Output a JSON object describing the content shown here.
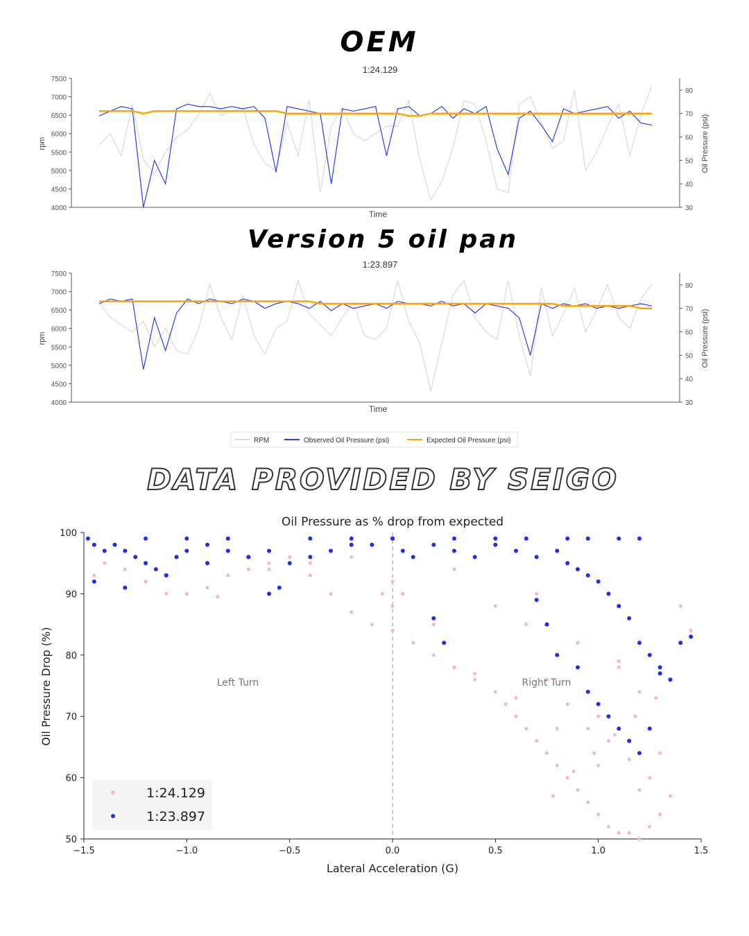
{
  "headings": {
    "top": "OEM",
    "middle": "Version 5 oil pan",
    "banner": "DATA PROVIDED BY SEIGO"
  },
  "colors": {
    "rpm": "#d9d9d9",
    "observed": "#2b3bf5",
    "expected": "#ffa500",
    "lap1_points": "#f6b8c8",
    "lap2_points": "#1a2ff0",
    "axis": "#444444"
  },
  "chart_data": [
    {
      "type": "line",
      "title": "1:24.129",
      "xlabel": "Time",
      "ylabel": "rpm",
      "y2label": "Oil Pressure (psi)",
      "ylim": [
        4000,
        7500
      ],
      "y2lim": [
        30,
        85
      ],
      "yticks": [
        4000,
        4500,
        5000,
        5500,
        6000,
        6500,
        7000,
        7500
      ],
      "y2ticks": [
        30,
        40,
        50,
        60,
        70,
        80
      ],
      "x": [
        0,
        2,
        4,
        6,
        8,
        10,
        12,
        14,
        16,
        18,
        20,
        22,
        24,
        26,
        28,
        30,
        32,
        34,
        36,
        38,
        40,
        42,
        44,
        46,
        48,
        50,
        52,
        54,
        56,
        58,
        60,
        62,
        64,
        66,
        68,
        70,
        72,
        74,
        76,
        78,
        80,
        82,
        84,
        86,
        88,
        90,
        92,
        94,
        96,
        98,
        100
      ],
      "series": [
        {
          "name": "RPM",
          "axis": "left",
          "values": [
            5700,
            6000,
            5400,
            6800,
            5300,
            4900,
            5500,
            5900,
            6100,
            6500,
            7100,
            6500,
            6600,
            6700,
            5700,
            5200,
            5000,
            6300,
            5400,
            6900,
            4400,
            6200,
            6700,
            6000,
            5800,
            6000,
            6200,
            6200,
            6900,
            5300,
            4200,
            4700,
            5600,
            6900,
            6800,
            5800,
            4500,
            4400,
            6800,
            7000,
            6300,
            5600,
            5800,
            7200,
            5000,
            5500,
            6200,
            6800,
            5400,
            6500,
            7300
          ]
        },
        {
          "name": "Observed Oil Pressure (psi)",
          "axis": "right",
          "values": [
            69,
            71,
            73,
            72,
            30,
            50,
            40,
            72,
            74,
            73,
            73,
            72,
            73,
            72,
            73,
            68,
            45,
            73,
            72,
            71,
            70,
            40,
            72,
            71,
            72,
            73,
            52,
            72,
            73,
            69,
            70,
            73,
            68,
            72,
            70,
            73,
            55,
            44,
            68,
            71,
            65,
            58,
            72,
            70,
            71,
            72,
            73,
            68,
            71,
            66,
            65
          ]
        },
        {
          "name": "Expected Oil Pressure (psi)",
          "axis": "right",
          "values": [
            71,
            71,
            71,
            71,
            70,
            71,
            71,
            71,
            71,
            71,
            71,
            71,
            71,
            71,
            71,
            71,
            71,
            70,
            70,
            70,
            70,
            70,
            70,
            70,
            70,
            70,
            70,
            70,
            69,
            69,
            70,
            70,
            70,
            70,
            70,
            70,
            70,
            70,
            70,
            70,
            70,
            70,
            70,
            70,
            70,
            70,
            70,
            70,
            70,
            70,
            70
          ]
        }
      ]
    },
    {
      "type": "line",
      "title": "1:23.897",
      "xlabel": "Time",
      "ylabel": "rpm",
      "y2label": "Oil Pressure (psi)",
      "ylim": [
        4000,
        7500
      ],
      "y2lim": [
        30,
        85
      ],
      "yticks": [
        4000,
        4500,
        5000,
        5500,
        6000,
        6500,
        7000,
        7500
      ],
      "y2ticks": [
        30,
        40,
        50,
        60,
        70,
        80
      ],
      "x": [
        0,
        2,
        4,
        6,
        8,
        10,
        12,
        14,
        16,
        18,
        20,
        22,
        24,
        26,
        28,
        30,
        32,
        34,
        36,
        38,
        40,
        42,
        44,
        46,
        48,
        50,
        52,
        54,
        56,
        58,
        60,
        62,
        64,
        66,
        68,
        70,
        72,
        74,
        76,
        78,
        80,
        82,
        84,
        86,
        88,
        90,
        92,
        94,
        96,
        98,
        100
      ],
      "series": [
        {
          "name": "RPM",
          "axis": "left",
          "values": [
            6700,
            6300,
            6100,
            5900,
            6200,
            5500,
            6000,
            5400,
            5300,
            6000,
            7200,
            6300,
            5700,
            6900,
            5800,
            5300,
            6000,
            6200,
            7300,
            6400,
            6100,
            5800,
            6300,
            6700,
            5800,
            5700,
            6000,
            7300,
            6200,
            5600,
            4300,
            5600,
            6900,
            7300,
            6300,
            5900,
            5700,
            7300,
            5800,
            4700,
            7100,
            5800,
            6400,
            7100,
            5900,
            6500,
            7200,
            6300,
            6000,
            6800,
            7200
          ]
        },
        {
          "name": "Observed Oil Pressure (psi)",
          "axis": "right",
          "values": [
            72,
            74,
            73,
            74,
            44,
            66,
            52,
            68,
            74,
            72,
            74,
            73,
            72,
            74,
            73,
            70,
            72,
            73,
            72,
            70,
            73,
            69,
            72,
            70,
            71,
            72,
            70,
            73,
            72,
            72,
            71,
            73,
            71,
            72,
            68,
            72,
            71,
            70,
            66,
            50,
            72,
            70,
            72,
            71,
            72,
            70,
            71,
            70,
            71,
            72,
            71
          ]
        },
        {
          "name": "Expected Oil Pressure (psi)",
          "axis": "right",
          "values": [
            73,
            73,
            73,
            73,
            73,
            73,
            73,
            73,
            73,
            73,
            73,
            73,
            73,
            73,
            73,
            73,
            73,
            73,
            73,
            73,
            72,
            72,
            72,
            72,
            72,
            72,
            72,
            72,
            72,
            72,
            72,
            72,
            72,
            72,
            72,
            72,
            72,
            72,
            72,
            72,
            72,
            72,
            71,
            71,
            71,
            71,
            71,
            71,
            71,
            70,
            70
          ]
        }
      ]
    },
    {
      "type": "scatter",
      "title": "Oil Pressure as % drop from expected",
      "xlabel": "Lateral Acceleration (G)",
      "ylabel": "Oil Pressure Drop (%)",
      "xlim": [
        -1.5,
        1.5
      ],
      "ylim": [
        50,
        100
      ],
      "xticks": [
        -1.5,
        -1.0,
        -0.5,
        0.0,
        0.5,
        1.0,
        1.5
      ],
      "yticks": [
        50,
        60,
        70,
        80,
        90,
        100
      ],
      "xtick_labels": [
        "−1.5",
        "−1.0",
        "−0.5",
        "0.0",
        "0.5",
        "1.0",
        "1.5"
      ],
      "annotations": [
        {
          "text": "Left Turn",
          "x": -0.75,
          "y": 75
        },
        {
          "text": "Right Turn",
          "x": 0.75,
          "y": 75
        }
      ],
      "reference_line_x": 0.0,
      "legend_position": "lower left",
      "series": [
        {
          "name": "1:24.129",
          "x": [
            -1.45,
            -1.4,
            -1.3,
            -1.2,
            -1.1,
            -1.0,
            -0.9,
            -0.85,
            -0.8,
            -0.7,
            -0.6,
            -0.5,
            -0.4,
            -0.3,
            -0.2,
            -0.1,
            0.0,
            0.0,
            0.0,
            0.05,
            0.1,
            0.2,
            0.3,
            0.4,
            0.5,
            0.55,
            0.6,
            0.65,
            0.7,
            0.75,
            0.8,
            0.85,
            0.9,
            0.95,
            1.0,
            1.05,
            1.1,
            1.15,
            1.2,
            1.25,
            1.3,
            1.35,
            0.2,
            0.4,
            0.6,
            0.8,
            1.0,
            1.2,
            1.3,
            -0.2,
            -0.4,
            -0.6,
            0.75,
            0.85,
            0.95,
            1.05,
            1.15,
            1.25,
            0.78,
            0.88,
            0.98,
            1.08,
            1.18,
            1.28,
            1.4,
            1.45,
            0.7,
            0.65,
            0.9,
            1.1,
            1.2,
            0.5,
            0.3,
            0.1,
            -0.05,
            1.0,
            1.1
          ],
          "y": [
            93,
            95,
            94,
            92,
            90,
            90,
            91,
            89.5,
            93,
            94,
            95,
            96,
            93,
            90,
            87,
            85,
            84,
            88,
            92,
            90,
            82,
            80,
            78,
            76,
            74,
            72,
            70,
            68,
            66,
            64,
            62,
            60,
            58,
            56,
            54,
            52,
            51,
            51,
            50,
            52,
            54,
            57,
            85,
            77,
            73,
            68,
            62,
            58,
            64,
            96,
            95,
            94,
            76,
            72,
            68,
            66,
            63,
            60,
            57,
            61,
            64,
            67,
            70,
            73,
            88,
            84,
            90,
            85,
            82,
            78,
            74,
            88,
            94,
            96,
            90,
            70,
            79
          ]
        },
        {
          "name": "1:23.897",
          "x": [
            -1.48,
            -1.45,
            -1.4,
            -1.35,
            -1.3,
            -1.25,
            -1.2,
            -1.15,
            -1.1,
            -1.05,
            -1.0,
            -0.9,
            -0.8,
            -0.7,
            -0.6,
            -0.55,
            -0.5,
            -0.4,
            -0.3,
            -0.2,
            -0.1,
            0.0,
            0.05,
            0.1,
            0.2,
            0.3,
            0.4,
            0.5,
            0.6,
            0.7,
            0.8,
            0.85,
            0.9,
            0.95,
            1.0,
            1.05,
            1.1,
            1.15,
            1.2,
            1.25,
            1.3,
            1.35,
            -1.45,
            -1.3,
            -1.1,
            -0.9,
            -0.7,
            -0.6,
            0.2,
            0.25,
            0.7,
            0.75,
            0.8,
            0.9,
            0.95,
            1.0,
            1.05,
            1.1,
            1.15,
            1.2,
            1.25,
            1.3,
            1.4,
            1.45,
            -1.2,
            -1.0,
            -0.8,
            -0.4,
            -0.2,
            0.0,
            0.3,
            0.5,
            0.65,
            0.85,
            0.95,
            1.1,
            1.2
          ],
          "y": [
            99,
            98,
            97,
            98,
            97,
            96,
            95,
            94,
            93,
            96,
            97,
            98,
            97,
            96,
            97,
            91,
            95,
            96,
            97,
            98,
            98,
            99,
            97,
            96,
            98,
            97,
            96,
            98,
            97,
            96,
            97,
            95,
            94,
            93,
            92,
            90,
            88,
            86,
            82,
            80,
            78,
            76,
            92,
            91,
            93,
            95,
            96,
            90,
            86,
            82,
            89,
            85,
            80,
            78,
            74,
            72,
            70,
            68,
            66,
            64,
            68,
            77,
            82,
            83,
            99,
            99,
            99,
            99,
            99,
            99,
            99,
            99,
            99,
            99,
            99,
            99,
            99
          ]
        }
      ]
    }
  ],
  "legend_top": {
    "items": [
      "RPM",
      "Observed Oil Pressure (psi)",
      "Expected Oil Pressure (psi)"
    ]
  }
}
